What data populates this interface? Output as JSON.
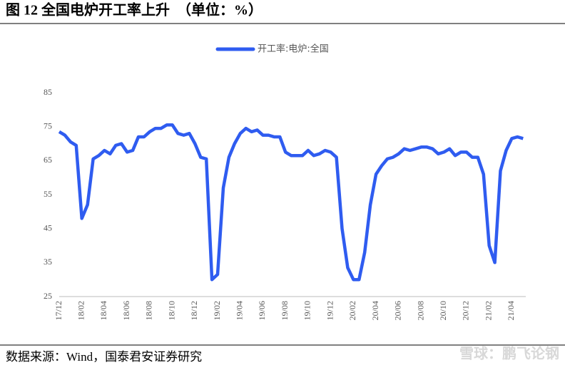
{
  "chart_data": {
    "type": "line",
    "title": "图 12  全国电炉开工率上升　（单位：%）",
    "source": "数据来源：Wind，国泰君安证券研究",
    "watermark": "雪球：鹏飞论钢",
    "categories": [
      "17/12",
      null,
      null,
      null,
      "18/02",
      null,
      null,
      null,
      "18/04",
      null,
      null,
      null,
      "18/06",
      null,
      null,
      null,
      "18/08",
      null,
      null,
      null,
      "18/10",
      null,
      null,
      null,
      "18/12",
      null,
      null,
      null,
      "19/02",
      null,
      null,
      null,
      "19/04",
      null,
      null,
      null,
      "19/06",
      null,
      null,
      null,
      "19/08",
      null,
      null,
      null,
      "19/10",
      null,
      null,
      null,
      "19/12",
      null,
      null,
      null,
      "20/02",
      null,
      null,
      null,
      "20/04",
      null,
      null,
      null,
      "20/06",
      null,
      null,
      null,
      "20/08",
      null,
      null,
      null,
      "20/10",
      null,
      null,
      null,
      "20/12",
      null,
      null,
      null,
      "21/02",
      null,
      null,
      null,
      "21/04",
      null,
      null
    ],
    "series": [
      {
        "name": "开工率:电炉:全国",
        "color": "#2f5cf0",
        "values": [
          73.5,
          72.5,
          70.5,
          69.5,
          48,
          52,
          65.5,
          66.5,
          68,
          67,
          69.5,
          70,
          67.5,
          68,
          72,
          72,
          73.5,
          74.5,
          74.5,
          75.5,
          75.5,
          73,
          72.5,
          73,
          70,
          66,
          65.5,
          30,
          31.5,
          57,
          66,
          70,
          73,
          74.5,
          73.5,
          74,
          72.5,
          72.5,
          72,
          72,
          67.5,
          66.5,
          66.5,
          66.5,
          68,
          66.5,
          67,
          68,
          67.5,
          66,
          45,
          33.5,
          30,
          30,
          38,
          52,
          61,
          63.5,
          65.5,
          66,
          67,
          68.5,
          68,
          68.5,
          69,
          69,
          68.5,
          67,
          67.5,
          68.5,
          66.5,
          67.5,
          67.5,
          66,
          66,
          61,
          40,
          35,
          62,
          68,
          71.5,
          72,
          71.5
        ]
      }
    ],
    "ylim": [
      25,
      85
    ],
    "yticks": [
      25,
      35,
      45,
      55,
      65,
      75,
      85
    ],
    "legend": "top"
  }
}
